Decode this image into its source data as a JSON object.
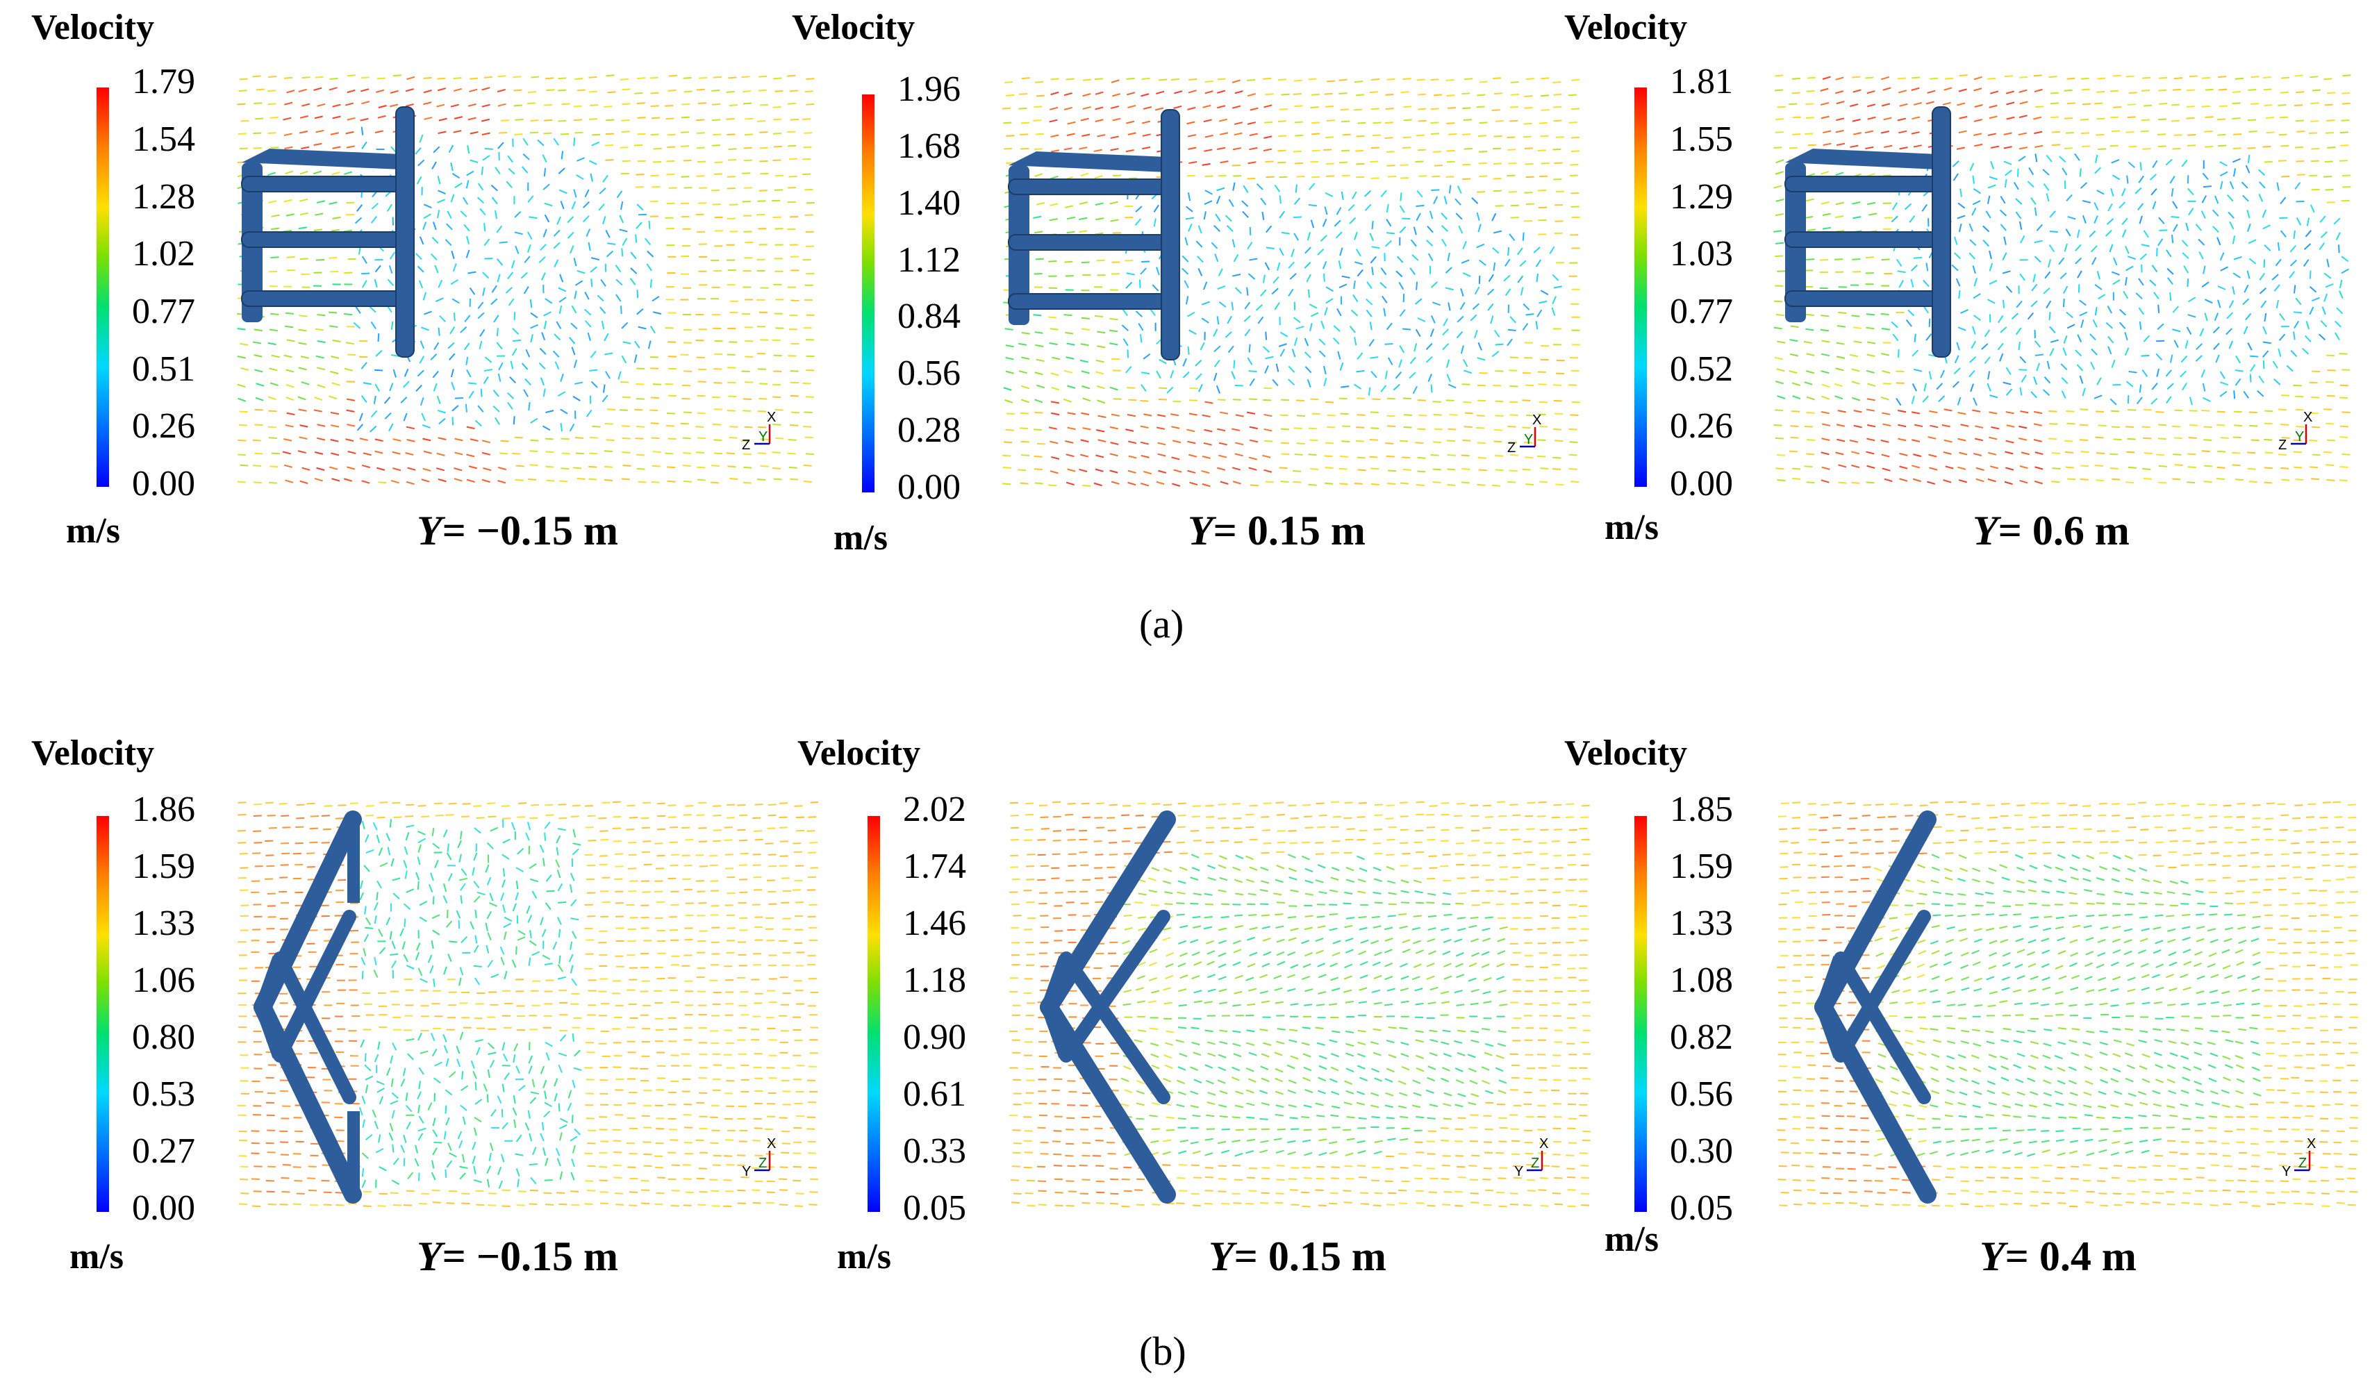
{
  "figure": {
    "colors": {
      "low": "#0000ff",
      "mid": "#00d8ff",
      "high": "#ff0000",
      "body": "#2e5d9c"
    },
    "subfigures": [
      {
        "label": "(a)",
        "panels": [
          {
            "legend_title": "Velocity",
            "ticks": [
              "1.79",
              "1.54",
              "1.28",
              "1.02",
              "0.77",
              "0.51",
              "0.26",
              "0.00"
            ],
            "unit": "m/s",
            "y_prefix": "Y",
            "y_value": "= −0.15 m",
            "axes": {
              "up": "X",
              "left": "Z",
              "center": "Y"
            }
          },
          {
            "legend_title": "Velocity",
            "ticks": [
              "1.96",
              "1.68",
              "1.40",
              "1.12",
              "0.84",
              "0.56",
              "0.28",
              "0.00"
            ],
            "unit": "m/s",
            "y_prefix": "Y",
            "y_value": "= 0.15 m",
            "axes": {
              "up": "X",
              "left": "Z",
              "center": "Y"
            }
          },
          {
            "legend_title": "Velocity",
            "ticks": [
              "1.81",
              "1.55",
              "1.29",
              "1.03",
              "0.77",
              "0.52",
              "0.26",
              "0.00"
            ],
            "unit": "m/s",
            "y_prefix": "Y",
            "y_value": "= 0.6 m",
            "axes": {
              "up": "X",
              "left": "Z",
              "center": "Y"
            }
          }
        ]
      },
      {
        "label": "(b)",
        "panels": [
          {
            "legend_title": "Velocity",
            "ticks": [
              "1.86",
              "1.59",
              "1.33",
              "1.06",
              "0.80",
              "0.53",
              "0.27",
              "0.00"
            ],
            "unit": "m/s",
            "y_prefix": "Y",
            "y_value": "= −0.15 m",
            "axes": {
              "up": "X",
              "left": "Y",
              "center": "Z"
            }
          },
          {
            "legend_title": "Velocity",
            "ticks": [
              "2.02",
              "1.74",
              "1.46",
              "1.18",
              "0.90",
              "0.61",
              "0.33",
              "0.05"
            ],
            "unit": "m/s",
            "y_prefix": "Y",
            "y_value": "= 0.15 m",
            "axes": {
              "up": "X",
              "left": "Y",
              "center": "Z"
            }
          },
          {
            "legend_title": "Velocity",
            "ticks": [
              "1.85",
              "1.59",
              "1.33",
              "1.08",
              "0.82",
              "0.56",
              "0.30",
              "0.05"
            ],
            "unit": "m/s",
            "y_prefix": "Y",
            "y_value": "= 0.4 m",
            "axes": {
              "up": "X",
              "left": "Y",
              "center": "Z"
            }
          }
        ]
      }
    ]
  }
}
